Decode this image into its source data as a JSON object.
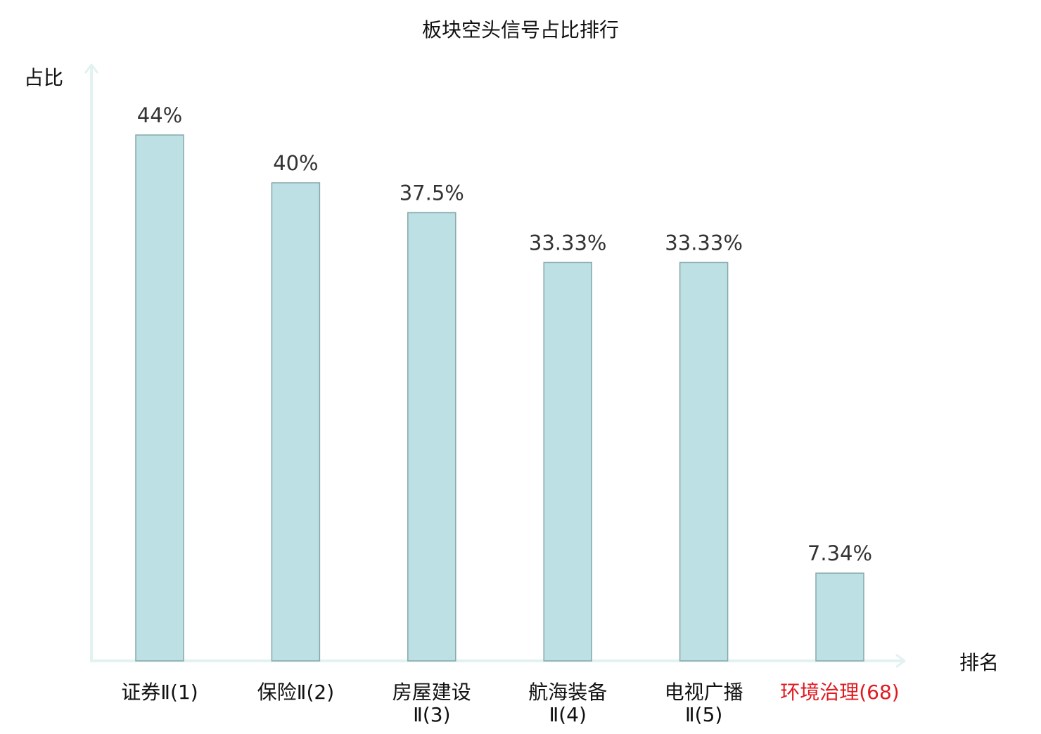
{
  "chart_data": {
    "type": "bar",
    "title": "板块空头信号占比排行",
    "ylabel": "占比",
    "xlabel": "排名",
    "ylim": [
      0,
      50
    ],
    "grid": false,
    "legend": "none",
    "value_suffix": "%",
    "colors": {
      "bar_fill": "#bce0e3",
      "bar_stroke": "#86a8aa",
      "axis": "#e2f2f0",
      "text": "#333333",
      "label": "#111111",
      "highlight": "#e0191f"
    },
    "categories": [
      {
        "line1": "证券Ⅱ(1)",
        "line2": "",
        "highlight": false
      },
      {
        "line1": "保险Ⅱ(2)",
        "line2": "",
        "highlight": false
      },
      {
        "line1": "房屋建设",
        "line2": "Ⅱ(3)",
        "highlight": false
      },
      {
        "line1": "航海装备",
        "line2": "Ⅱ(4)",
        "highlight": false
      },
      {
        "line1": "电视广播",
        "line2": "Ⅱ(5)",
        "highlight": false
      },
      {
        "line1": "环境治理(68)",
        "line2": "",
        "highlight": true
      }
    ],
    "values": [
      44,
      40,
      37.5,
      33.33,
      33.33,
      7.34
    ],
    "value_labels": [
      "44%",
      "40%",
      "37.5%",
      "33.33%",
      "33.33%",
      "7.34%"
    ]
  }
}
